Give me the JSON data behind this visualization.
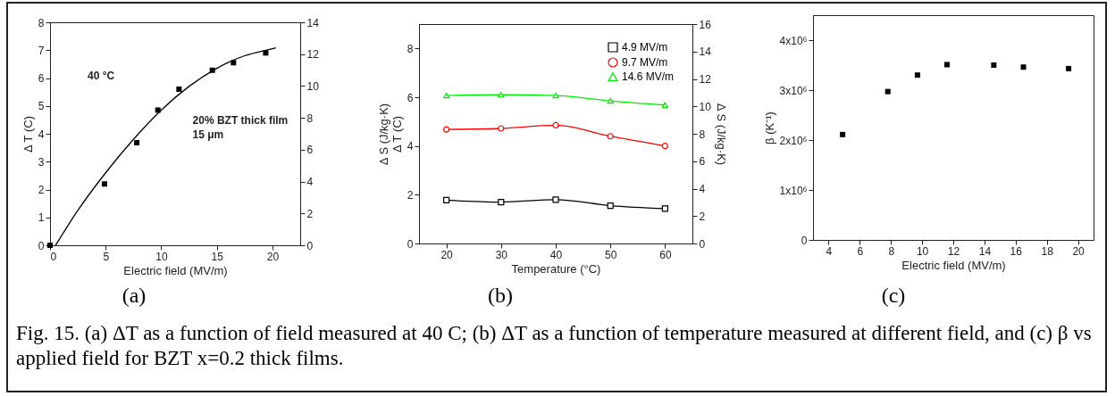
{
  "chart_data": [
    {
      "type": "scatter",
      "xlabel": "Electric field (MV/m)",
      "ylabel": "Δ T (C)",
      "xlim": [
        0,
        22.5
      ],
      "xticks": [
        0,
        5,
        10,
        15,
        20
      ],
      "ylim": [
        0,
        8
      ],
      "yticks": [
        0,
        1,
        2,
        3,
        4,
        5,
        6,
        7,
        8
      ],
      "y2lim": [
        0,
        14
      ],
      "y2ticks": [
        0,
        2,
        4,
        6,
        8,
        10,
        12,
        14
      ],
      "grid": false,
      "legend": false,
      "series": [
        {
          "type": "scatter",
          "color": "#000000",
          "marker": "square",
          "x": [
            0,
            4.9,
            7.8,
            9.7,
            11.6,
            14.6,
            16.5,
            19.4
          ],
          "values": [
            0,
            2.2,
            3.68,
            4.85,
            5.6,
            6.28,
            6.55,
            6.9
          ]
        },
        {
          "type": "line",
          "color": "#000000",
          "marker": "none",
          "x": [
            0.5,
            2.5,
            5,
            7.5,
            10,
            12.5,
            15,
            17.5,
            20,
            20.3
          ],
          "values": [
            0,
            1.25,
            2.6,
            3.8,
            4.85,
            5.7,
            6.35,
            6.8,
            7.05,
            7.08
          ]
        }
      ],
      "annotations": [
        "40 °C",
        "20% BZT thick film\n15 μm",
        "(a)"
      ]
    },
    {
      "type": "line",
      "xlabel": "Temperature (°C)",
      "ylabel": "Δ S (J/kg·K)\nΔ T (C)",
      "y2label": "Δ S (J/kg·K)",
      "xlim": [
        15,
        65
      ],
      "xticks": [
        20,
        30,
        40,
        50,
        60
      ],
      "ylim": [
        0,
        9
      ],
      "yticks": [
        0,
        2,
        4,
        6,
        8
      ],
      "y2lim": [
        0,
        16
      ],
      "y2ticks": [
        0,
        2,
        4,
        6,
        8,
        10,
        12,
        14,
        16
      ],
      "grid": false,
      "legend": "top right",
      "x": [
        20,
        30,
        40,
        50,
        60
      ],
      "series": [
        {
          "name": "4.9 MV/m",
          "color": "#000000",
          "marker": "square",
          "values": [
            1.78,
            1.7,
            1.8,
            1.55,
            1.43
          ]
        },
        {
          "name": "9.7 MV/m",
          "color": "#ff0000",
          "marker": "circle",
          "values": [
            4.68,
            4.72,
            4.85,
            4.4,
            4.0
          ]
        },
        {
          "name": "14.6 MV/m",
          "color": "#00ee00",
          "marker": "triangle",
          "values": [
            6.07,
            6.1,
            6.07,
            5.85,
            5.68
          ]
        }
      ],
      "annotations": [
        "(b)"
      ]
    },
    {
      "type": "scatter",
      "xlabel": "Electric field (MV/m)",
      "ylabel": "β (K⁻¹)",
      "xlim": [
        3,
        21
      ],
      "xticks": [
        4,
        6,
        8,
        10,
        12,
        14,
        16,
        18,
        20
      ],
      "ylim": [
        0,
        4500000
      ],
      "yticks": [
        0,
        {
          "value": 1000000,
          "label": "1x10⁶"
        },
        {
          "value": 2000000,
          "label": "2x10⁶"
        },
        {
          "value": 3000000,
          "label": "3x10⁶"
        },
        {
          "value": 4000000,
          "label": "4x10⁶"
        }
      ],
      "grid": false,
      "legend": false,
      "series": [
        {
          "type": "scatter",
          "color": "#000000",
          "marker": "square",
          "x": [
            4.9,
            7.8,
            9.7,
            11.6,
            14.6,
            16.5,
            19.4
          ],
          "values": [
            2110000,
            2970000,
            3300000,
            3510000,
            3500000,
            3460000,
            3430000
          ]
        }
      ],
      "annotations": [
        "(c)"
      ]
    },
    {
      "type": "other",
      "annotations": [
        "Fig. 15. (a) ΔT as a function of field measured at 40 C; (b) ΔT as a function of temperature measured at different field, and (c) β vs applied field for BZT x=0.2 thick films."
      ]
    }
  ]
}
